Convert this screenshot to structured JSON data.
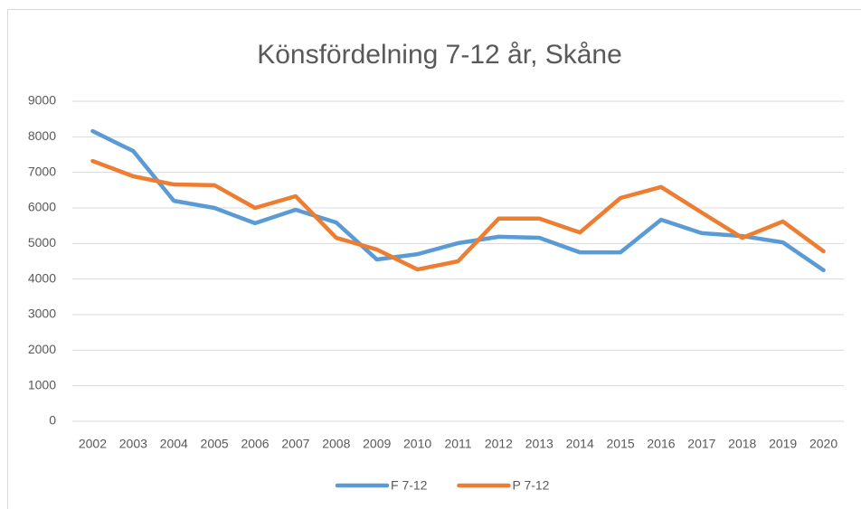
{
  "chart_data": {
    "type": "line",
    "title": "Könsfördelning 7-12 år, Skåne",
    "categories": [
      "2002",
      "2003",
      "2004",
      "2005",
      "2006",
      "2007",
      "2008",
      "2009",
      "2010",
      "2011",
      "2012",
      "2013",
      "2014",
      "2015",
      "2016",
      "2017",
      "2018",
      "2019",
      "2020"
    ],
    "series": [
      {
        "name": "F 7-12",
        "color": "#5b9bd5",
        "values": [
          8160,
          7600,
          6200,
          6000,
          5570,
          5950,
          5590,
          4550,
          4700,
          5010,
          5190,
          5160,
          4750,
          4750,
          5670,
          5290,
          5210,
          5030,
          4250
        ]
      },
      {
        "name": "P 7-12",
        "color": "#ed7d31",
        "values": [
          7320,
          6890,
          6660,
          6640,
          6000,
          6330,
          5160,
          4830,
          4270,
          4500,
          5700,
          5700,
          5310,
          6280,
          6590,
          5870,
          5160,
          5620,
          4780
        ]
      }
    ],
    "ylim": [
      0,
      9000
    ],
    "yticks": [
      0,
      1000,
      2000,
      3000,
      4000,
      5000,
      6000,
      7000,
      8000,
      9000
    ],
    "grid": true,
    "legend": "bottom"
  }
}
